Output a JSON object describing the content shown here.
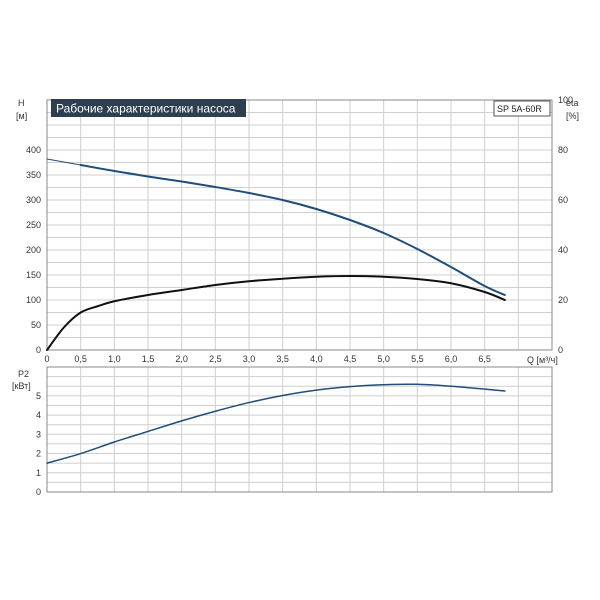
{
  "chart_data": [
    {
      "type": "line",
      "title": "Рабочие характеристики насоса",
      "model": "SP 5A-60R",
      "ylabel_left": "H",
      "ylabel_left_unit": "[м]",
      "ylabel_right": "eta",
      "ylabel_right_unit": "[%]",
      "xlabel": "Q [м³/ч]",
      "xlim": [
        0,
        7.5
      ],
      "ylim_left": [
        0,
        500
      ],
      "ylim_right": [
        0,
        100
      ],
      "x_ticks": [
        "0",
        "0,5",
        "1,0",
        "1,5",
        "2,0",
        "2,5",
        "3,0",
        "3,5",
        "4,0",
        "4,5",
        "5,0",
        "5,5",
        "6,0",
        "6,5"
      ],
      "y_ticks_left": [
        "0",
        "50",
        "100",
        "150",
        "200",
        "250",
        "300",
        "350",
        "400"
      ],
      "y_ticks_right": [
        "0",
        "20",
        "40",
        "60",
        "80",
        "100"
      ],
      "grid": true,
      "series": [
        {
          "key": "head",
          "axis": "left",
          "color": "#1f4e7a",
          "x": [
            0.5,
            1.0,
            1.5,
            2.0,
            2.5,
            3.0,
            3.5,
            4.0,
            4.5,
            5.0,
            5.5,
            6.0,
            6.5,
            6.8
          ],
          "y": [
            370,
            358,
            347,
            337,
            326,
            314,
            300,
            282,
            260,
            234,
            202,
            166,
            128,
            110
          ]
        },
        {
          "key": "head-extension",
          "axis": "left",
          "color": "#1f4e7a",
          "x": [
            0,
            0.5
          ],
          "y": [
            382,
            370
          ]
        },
        {
          "key": "efficiency",
          "axis": "right",
          "color": "#111111",
          "x": [
            0,
            0.25,
            0.5,
            0.75,
            1.0,
            1.5,
            2.0,
            2.5,
            3.0,
            3.5,
            4.0,
            4.5,
            5.0,
            5.5,
            6.0,
            6.5,
            6.8
          ],
          "y": [
            0,
            9,
            15,
            17.5,
            19.5,
            22,
            24,
            26,
            27.5,
            28.5,
            29.3,
            29.6,
            29.3,
            28.4,
            26.7,
            23.2,
            20
          ]
        }
      ]
    },
    {
      "type": "line",
      "ylabel": "P2",
      "ylabel_unit": "[кВт]",
      "xlim": [
        0,
        7.5
      ],
      "ylim": [
        0,
        6.5
      ],
      "y_ticks": [
        "0",
        "1",
        "2",
        "3",
        "4",
        "5"
      ],
      "grid": true,
      "series": [
        {
          "key": "power",
          "color": "#1f4e7a",
          "x": [
            0,
            0.5,
            1.0,
            1.5,
            2.0,
            2.5,
            3.0,
            3.5,
            4.0,
            4.5,
            5.0,
            5.5,
            6.0,
            6.5,
            6.8
          ],
          "y": [
            1.5,
            2.0,
            2.6,
            3.15,
            3.7,
            4.2,
            4.65,
            5.02,
            5.3,
            5.48,
            5.58,
            5.6,
            5.5,
            5.35,
            5.25
          ]
        }
      ]
    }
  ]
}
